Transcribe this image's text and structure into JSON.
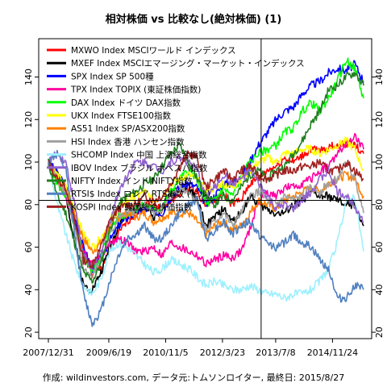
{
  "chart_data": {
    "type": "line",
    "title": "相対株価 vs 比較なし(絶対株価) (1)",
    "caption": "作成: wildinvestors.com, データ元:トムソンロイター, 最終日: 2015/8/27",
    "x_ticks": [
      "2007/12/31",
      "2009/6/19",
      "2010/11/5",
      "2012/3/23",
      "2013/7/8",
      "2014/11/24"
    ],
    "y_ticks": [
      20,
      40,
      60,
      80,
      100,
      120,
      140
    ],
    "ylim": [
      17,
      158
    ],
    "x_range": [
      "2007/12/31",
      "2015/8/27"
    ],
    "reference_line": {
      "x": "2013/3/1",
      "y": 82
    },
    "series": [
      {
        "name": "MXWO Index MSCIワールド インデックス",
        "color": "#ff0000",
        "width": 2.5,
        "values": [
          100,
          92,
          85,
          72,
          58,
          47,
          50,
          58,
          66,
          72,
          76,
          80,
          80,
          77,
          82,
          85,
          88,
          86,
          80,
          82,
          85,
          80,
          82,
          90,
          92,
          96,
          98,
          102,
          100,
          103,
          106,
          105,
          107,
          108,
          109,
          108,
          104
        ]
      },
      {
        "name": "MXEF Index MSCIエマージング・マーケット・インデックス",
        "color": "#000000",
        "width": 2.5,
        "values": [
          100,
          95,
          85,
          62,
          42,
          40,
          48,
          60,
          70,
          76,
          78,
          80,
          74,
          78,
          86,
          88,
          88,
          82,
          70,
          74,
          78,
          72,
          76,
          84,
          80,
          78,
          76,
          76,
          80,
          82,
          86,
          84,
          84,
          82,
          80,
          80,
          70
        ]
      },
      {
        "name": "SPX Index SP 500種",
        "color": "#0000ff",
        "width": 2.5,
        "values": [
          100,
          95,
          88,
          75,
          60,
          50,
          55,
          63,
          70,
          74,
          76,
          78,
          77,
          76,
          84,
          88,
          90,
          88,
          80,
          84,
          90,
          90,
          94,
          100,
          108,
          114,
          120,
          124,
          126,
          132,
          136,
          138,
          142,
          144,
          143,
          146,
          138
        ]
      },
      {
        "name": "TPX Index TOPIX (東証株価指数)",
        "color": "#ff00a0",
        "width": 2.5,
        "values": [
          100,
          92,
          84,
          72,
          58,
          52,
          56,
          62,
          64,
          62,
          58,
          58,
          60,
          56,
          62,
          60,
          58,
          56,
          52,
          54,
          56,
          55,
          58,
          68,
          82,
          86,
          84,
          88,
          88,
          90,
          92,
          96,
          98,
          104,
          108,
          112,
          106
        ]
      },
      {
        "name": "DAX Index ドイツ DAX指数",
        "color": "#00ff00",
        "width": 2.5,
        "values": [
          100,
          90,
          84,
          70,
          56,
          48,
          56,
          68,
          74,
          76,
          78,
          80,
          78,
          78,
          86,
          92,
          96,
          92,
          80,
          82,
          88,
          84,
          92,
          100,
          104,
          106,
          108,
          114,
          116,
          124,
          128,
          124,
          130,
          138,
          148,
          144,
          130
        ]
      },
      {
        "name": "UKX Index FTSE100指数",
        "color": "#ffff00",
        "width": 2.5,
        "values": [
          100,
          94,
          88,
          78,
          66,
          60,
          64,
          72,
          78,
          82,
          84,
          86,
          82,
          84,
          90,
          92,
          94,
          92,
          86,
          88,
          90,
          88,
          92,
          96,
          100,
          102,
          100,
          104,
          104,
          106,
          106,
          104,
          106,
          108,
          110,
          106,
          96
        ]
      },
      {
        "name": "AS51 Index SP/ASX200指数",
        "color": "#ff8000",
        "width": 2.5,
        "values": [
          100,
          92,
          86,
          76,
          64,
          58,
          62,
          70,
          74,
          76,
          74,
          76,
          72,
          74,
          76,
          76,
          76,
          72,
          66,
          70,
          72,
          68,
          70,
          76,
          82,
          80,
          78,
          82,
          84,
          86,
          88,
          86,
          90,
          92,
          94,
          92,
          84
        ]
      },
      {
        "name": "HSI Index 香港 ハンセン指数",
        "color": "#a0a0a0",
        "width": 2.5,
        "values": [
          100,
          92,
          86,
          68,
          50,
          46,
          54,
          66,
          74,
          76,
          76,
          80,
          76,
          78,
          84,
          88,
          86,
          82,
          68,
          72,
          76,
          70,
          76,
          84,
          86,
          82,
          80,
          84,
          82,
          84,
          88,
          86,
          90,
          92,
          100,
          92,
          76
        ]
      },
      {
        "name": "SHCOMP Index 中国 上海総合指数",
        "color": "#9ef0ff",
        "width": 2.5,
        "values": [
          100,
          80,
          66,
          52,
          42,
          38,
          45,
          58,
          62,
          60,
          56,
          52,
          48,
          50,
          54,
          52,
          50,
          46,
          42,
          44,
          42,
          40,
          40,
          42,
          40,
          38,
          38,
          36,
          38,
          38,
          40,
          44,
          50,
          62,
          82,
          84,
          58
        ]
      },
      {
        "name": "IBOV Index ブラジル ボベスパ指数",
        "color": "#9060d0",
        "width": 2.5,
        "values": [
          100,
          104,
          100,
          80,
          56,
          50,
          58,
          72,
          86,
          94,
          100,
          100,
          98,
          96,
          100,
          102,
          100,
          96,
          84,
          88,
          94,
          90,
          92,
          96,
          90,
          84,
          78,
          80,
          78,
          82,
          86,
          92,
          96,
          86,
          84,
          80,
          72
        ]
      },
      {
        "name": "NIFTY Index インド NIFTY指数",
        "color": "#208020",
        "width": 2.5,
        "values": [
          100,
          84,
          76,
          62,
          48,
          44,
          52,
          68,
          80,
          84,
          86,
          90,
          92,
          98,
          104,
          108,
          100,
          92,
          84,
          80,
          84,
          82,
          88,
          94,
          96,
          92,
          96,
          98,
          104,
          110,
          118,
          124,
          134,
          136,
          140,
          142,
          136
        ]
      },
      {
        "name": "RTSI$ Index ロシア RTS指数 (ドル)",
        "color": "#5080c0",
        "width": 2.5,
        "values": [
          100,
          104,
          96,
          66,
          38,
          24,
          30,
          44,
          56,
          64,
          66,
          70,
          64,
          64,
          70,
          76,
          80,
          82,
          64,
          68,
          72,
          66,
          70,
          72,
          66,
          62,
          60,
          62,
          66,
          62,
          60,
          54,
          50,
          36,
          36,
          42,
          40
        ]
      },
      {
        "name": "KOSPI Index 韓国総合株価指数",
        "color": "#a02020",
        "width": 2.5,
        "values": [
          100,
          92,
          88,
          72,
          54,
          52,
          60,
          72,
          78,
          80,
          80,
          84,
          82,
          84,
          90,
          98,
          104,
          102,
          88,
          92,
          96,
          92,
          96,
          98,
          94,
          92,
          94,
          96,
          96,
          98,
          98,
          100,
          96,
          96,
          100,
          96,
          92
        ]
      }
    ]
  }
}
